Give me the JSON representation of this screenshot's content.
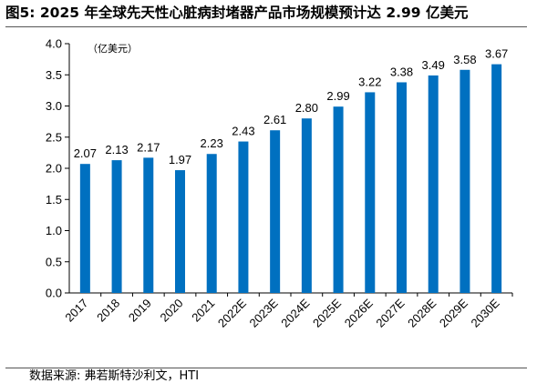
{
  "figure": {
    "title": "图5:  2025 年全球先天性心脏病封堵器产品市场规模预计达 2.99 亿美元",
    "source": "数据来源:  弗若斯特沙利文，HTI"
  },
  "chart_data": {
    "type": "bar",
    "title": "",
    "unit_label": "（亿美元）",
    "xlabel": "",
    "ylabel": "",
    "categories": [
      "2017",
      "2018",
      "2019",
      "2020",
      "2021",
      "2022E",
      "2023E",
      "2024E",
      "2025E",
      "2026E",
      "2027E",
      "2028E",
      "2029E",
      "2030E"
    ],
    "values": [
      2.07,
      2.13,
      2.17,
      1.97,
      2.23,
      2.43,
      2.61,
      2.8,
      2.99,
      3.22,
      3.38,
      3.49,
      3.58,
      3.67
    ],
    "value_labels": [
      "2.07",
      "2.13",
      "2.17",
      "1.97",
      "2.23",
      "2.43",
      "2.61",
      "2.80",
      "2.99",
      "3.22",
      "3.38",
      "3.49",
      "3.58",
      "3.67"
    ],
    "ylim": [
      0,
      4.0
    ],
    "yticks": [
      "0.0",
      "0.5",
      "1.0",
      "1.5",
      "2.0",
      "2.5",
      "3.0",
      "3.5",
      "4.0"
    ],
    "bar_color": "#0070C0",
    "grid": false,
    "legend": "none"
  }
}
